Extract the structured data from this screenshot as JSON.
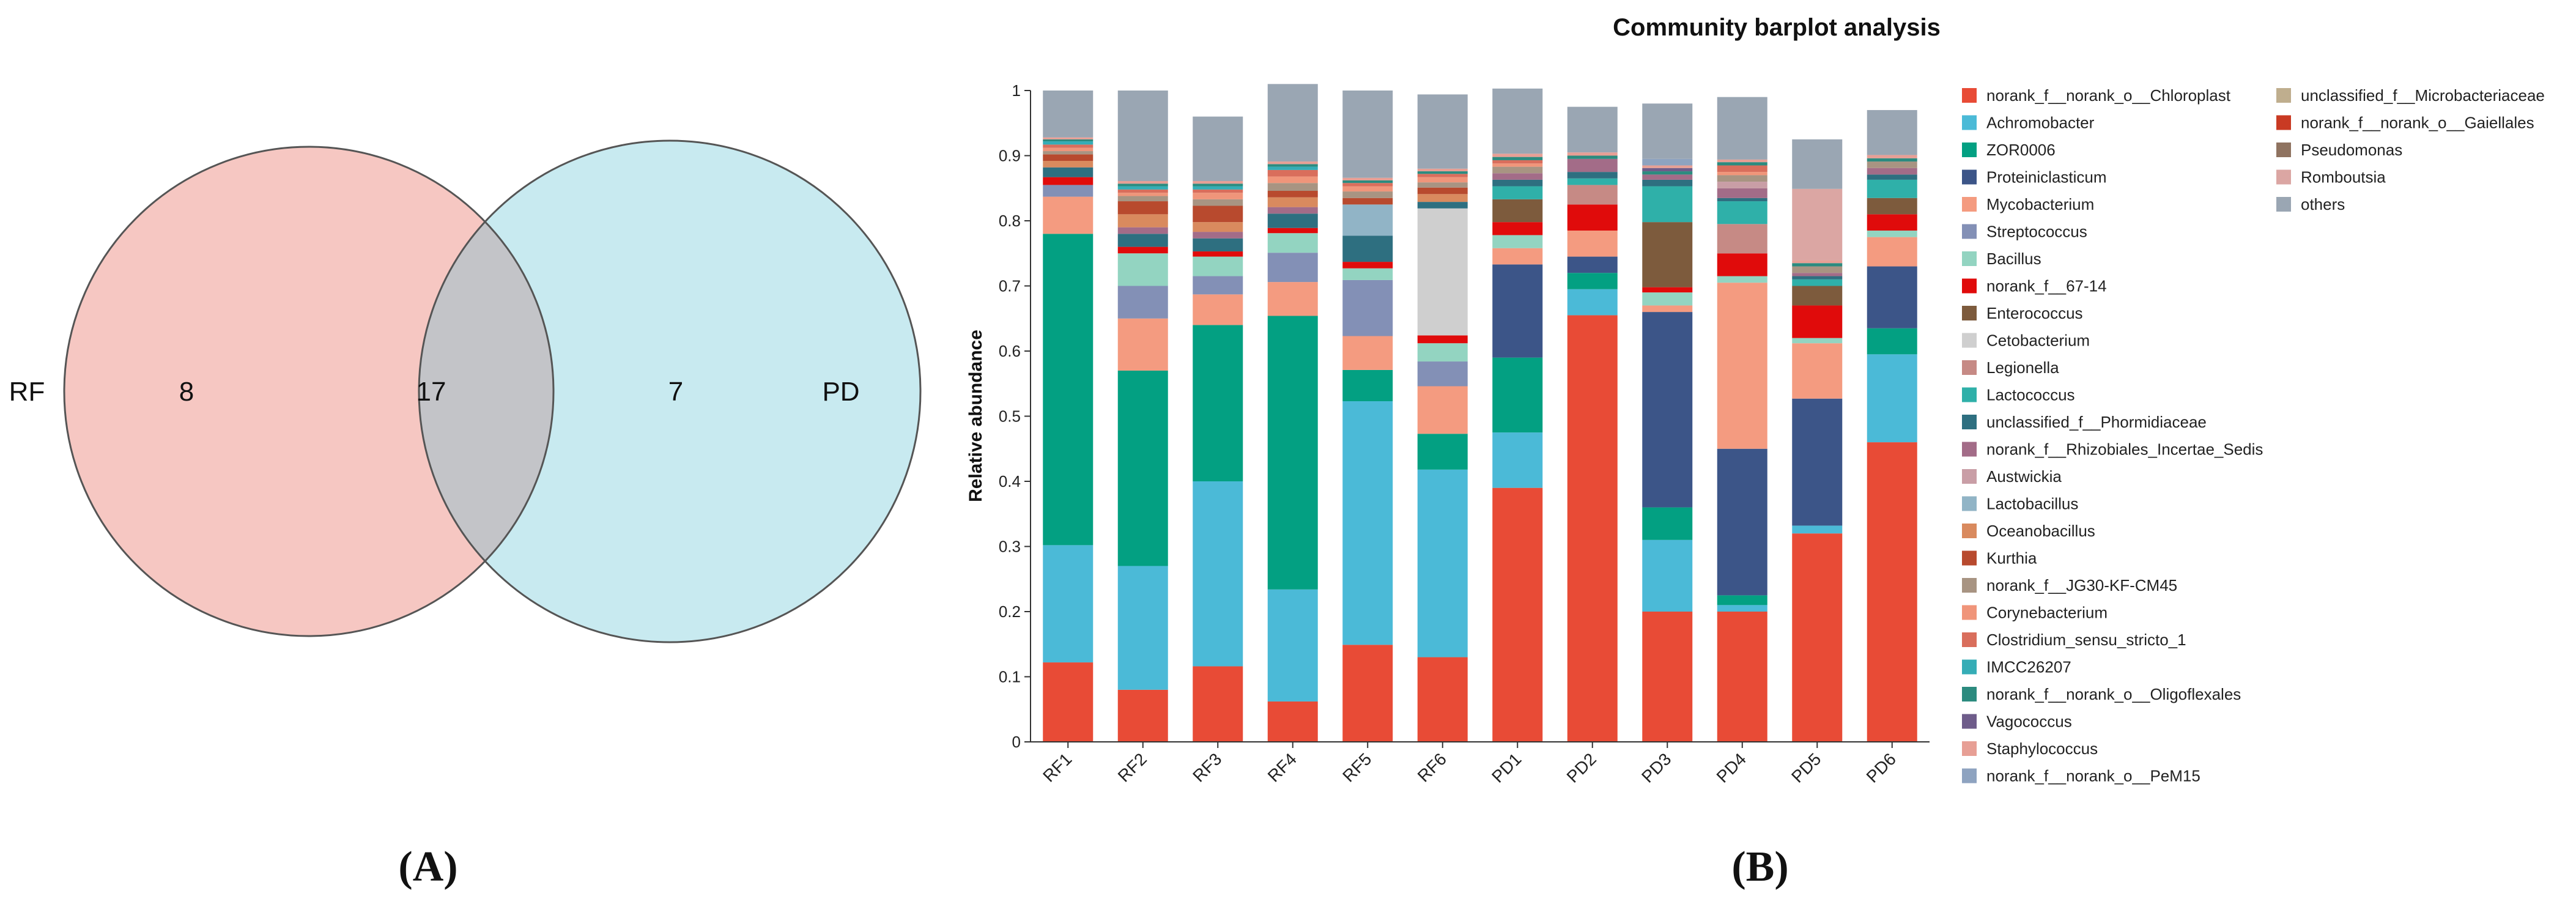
{
  "panel_a": {
    "caption": "(A)",
    "venn": {
      "left_label": "RF",
      "right_label": "PD",
      "left_only": "8",
      "overlap": "17",
      "right_only": "7",
      "colors": {
        "left": "#f6c7c2",
        "right": "#c8eaf0",
        "overlap": "#c3c4c8"
      }
    }
  },
  "panel_b": {
    "caption": "(B)",
    "chart_data": {
      "type": "bar",
      "stacked": true,
      "title": "Community barplot analysis",
      "xlabel": "",
      "ylabel": "Relative abundance",
      "ylim": [
        0,
        1
      ],
      "yticks": [
        "0",
        "0.1",
        "0.2",
        "0.3",
        "0.4",
        "0.5",
        "0.6",
        "0.7",
        "0.8",
        "0.9",
        "1"
      ],
      "categories": [
        "RF1",
        "RF2",
        "RF3",
        "RF4",
        "RF5",
        "RF6",
        "PD1",
        "PD2",
        "PD3",
        "PD4",
        "PD5",
        "PD6"
      ],
      "series": [
        {
          "name": "norank_f__norank_o__Chloroplast",
          "color": "#e84b36",
          "values": [
            0.122,
            0.08,
            0.116,
            0.062,
            0.149,
            0.13,
            0.39,
            0.655,
            0.2,
            0.2,
            0.32,
            0.46
          ]
        },
        {
          "name": "Achromobacter",
          "color": "#4bbad7",
          "values": [
            0.18,
            0.19,
            0.284,
            0.172,
            0.374,
            0.288,
            0.085,
            0.04,
            0.11,
            0.01,
            0.012,
            0.135
          ]
        },
        {
          "name": "ZOR0006",
          "color": "#03a082",
          "values": [
            0.478,
            0.3,
            0.24,
            0.42,
            0.048,
            0.055,
            0.115,
            0.025,
            0.05,
            0.015,
            0.0,
            0.04
          ]
        },
        {
          "name": "Proteiniclasticum",
          "color": "#3c5588",
          "values": [
            0.0,
            0.0,
            0.0,
            0.0,
            0.0,
            0.0,
            0.143,
            0.025,
            0.3,
            0.225,
            0.195,
            0.095
          ]
        },
        {
          "name": "Mycobacterium",
          "color": "#f49b80",
          "values": [
            0.057,
            0.08,
            0.047,
            0.052,
            0.052,
            0.073,
            0.025,
            0.04,
            0.01,
            0.255,
            0.085,
            0.045
          ]
        },
        {
          "name": "Streptococcus",
          "color": "#8390b6",
          "values": [
            0.018,
            0.05,
            0.028,
            0.045,
            0.086,
            0.038,
            0.0,
            0.0,
            0.0,
            0.0,
            0.0,
            0.0
          ]
        },
        {
          "name": "Bacillus",
          "color": "#93d4c1",
          "values": [
            0.0,
            0.05,
            0.03,
            0.03,
            0.018,
            0.028,
            0.02,
            0.0,
            0.02,
            0.01,
            0.008,
            0.01
          ]
        },
        {
          "name": "norank_f__67-14",
          "color": "#e00b0b",
          "values": [
            0.012,
            0.01,
            0.008,
            0.008,
            0.01,
            0.012,
            0.02,
            0.04,
            0.008,
            0.035,
            0.05,
            0.025
          ]
        },
        {
          "name": "Enterococcus",
          "color": "#7d5b3d",
          "values": [
            0.0,
            0.0,
            0.0,
            0.0,
            0.0,
            0.0,
            0.035,
            0.0,
            0.1,
            0.0,
            0.03,
            0.025
          ]
        },
        {
          "name": "Cetobacterium",
          "color": "#cfcfcf",
          "values": [
            0.0,
            0.0,
            0.0,
            0.0,
            0.0,
            0.195,
            0.0,
            0.0,
            0.0,
            0.0,
            0.0,
            0.0
          ]
        },
        {
          "name": "Legionella",
          "color": "#c68a85",
          "values": [
            0.0,
            0.0,
            0.0,
            0.0,
            0.0,
            0.0,
            0.0,
            0.03,
            0.0,
            0.045,
            0.0,
            0.0
          ]
        },
        {
          "name": "Lactococcus",
          "color": "#2fb0a9",
          "values": [
            0.0,
            0.0,
            0.0,
            0.0,
            0.0,
            0.0,
            0.02,
            0.01,
            0.055,
            0.035,
            0.01,
            0.028
          ]
        },
        {
          "name": "unclassified_f__Phormidiaceae",
          "color": "#2e6f80",
          "values": [
            0.015,
            0.02,
            0.02,
            0.022,
            0.04,
            0.01,
            0.01,
            0.01,
            0.01,
            0.005,
            0.005,
            0.008
          ]
        },
        {
          "name": "norank_f__Rhizobiales_Incertae_Sedis",
          "color": "#a36c88",
          "values": [
            0.0,
            0.01,
            0.01,
            0.01,
            0.0,
            0.0,
            0.01,
            0.02,
            0.008,
            0.015,
            0.005,
            0.01
          ]
        },
        {
          "name": "Austwickia",
          "color": "#c99ea6",
          "values": [
            0.0,
            0.0,
            0.0,
            0.0,
            0.0,
            0.0,
            0.0,
            0.0,
            0.0,
            0.01,
            0.0,
            0.0
          ]
        },
        {
          "name": "Lactobacillus",
          "color": "#91b4c6",
          "values": [
            0.0,
            0.0,
            0.0,
            0.0,
            0.048,
            0.0,
            0.0,
            0.0,
            0.0,
            0.0,
            0.0,
            0.0
          ]
        },
        {
          "name": "Oceanobacillus",
          "color": "#d98a5e",
          "values": [
            0.01,
            0.02,
            0.015,
            0.015,
            0.0,
            0.012,
            0.0,
            0.0,
            0.0,
            0.0,
            0.0,
            0.0
          ]
        },
        {
          "name": "Kurthia",
          "color": "#b84a2e",
          "values": [
            0.01,
            0.02,
            0.025,
            0.01,
            0.01,
            0.01,
            0.0,
            0.0,
            0.0,
            0.0,
            0.0,
            0.0
          ]
        },
        {
          "name": "norank_f__JG30-KF-CM45",
          "color": "#a89482",
          "values": [
            0.005,
            0.008,
            0.01,
            0.012,
            0.01,
            0.008,
            0.01,
            0.0,
            0.0,
            0.01,
            0.01,
            0.01
          ]
        },
        {
          "name": "Corynebacterium",
          "color": "#f0957a",
          "values": [
            0.005,
            0.005,
            0.01,
            0.01,
            0.008,
            0.008,
            0.005,
            0.0,
            0.0,
            0.005,
            0.0,
            0.0
          ]
        },
        {
          "name": "Clostridium_sensu_stricto_1",
          "color": "#d96e5c",
          "values": [
            0.005,
            0.005,
            0.005,
            0.01,
            0.005,
            0.005,
            0.005,
            0.0,
            0.0,
            0.01,
            0.0,
            0.0
          ]
        },
        {
          "name": "IMCC26207",
          "color": "#35adb6",
          "values": [
            0.005,
            0.005,
            0.005,
            0.005,
            0.0,
            0.0,
            0.0,
            0.0,
            0.0,
            0.0,
            0.0,
            0.0
          ]
        },
        {
          "name": "norank_f__norank_o__Oligoflexales",
          "color": "#2c8b7f",
          "values": [
            0.003,
            0.004,
            0.004,
            0.004,
            0.004,
            0.004,
            0.005,
            0.005,
            0.005,
            0.005,
            0.005,
            0.005
          ]
        },
        {
          "name": "Vagococcus",
          "color": "#6e5c8a",
          "values": [
            0.0,
            0.0,
            0.0,
            0.0,
            0.0,
            0.0,
            0.0,
            0.0,
            0.005,
            0.0,
            0.0,
            0.0
          ]
        },
        {
          "name": "Staphylococcus",
          "color": "#e79f95",
          "values": [
            0.003,
            0.004,
            0.004,
            0.004,
            0.004,
            0.004,
            0.005,
            0.005,
            0.004,
            0.004,
            0.004,
            0.005
          ]
        },
        {
          "name": "norank_f__norank_o__PeM15",
          "color": "#8ea3c0",
          "values": [
            0.0,
            0.0,
            0.0,
            0.0,
            0.0,
            0.0,
            0.0,
            0.0,
            0.01,
            0.0,
            0.0,
            0.0
          ]
        },
        {
          "name": "unclassified_f__Microbacteriaceae",
          "color": "#bfae8e",
          "values": [
            0.0,
            0.0,
            0.0,
            0.0,
            0.0,
            0.0,
            0.0,
            0.0,
            0.0,
            0.0,
            0.0,
            0.0
          ]
        },
        {
          "name": "norank_f__norank_o__Gaiellales",
          "color": "#c93a23",
          "values": [
            0.0,
            0.0,
            0.0,
            0.0,
            0.0,
            0.0,
            0.0,
            0.0,
            0.0,
            0.0,
            0.0,
            0.0
          ]
        },
        {
          "name": "Pseudomonas",
          "color": "#8f7360",
          "values": [
            0.0,
            0.0,
            0.0,
            0.0,
            0.0,
            0.0,
            0.0,
            0.0,
            0.0,
            0.0,
            0.0,
            0.0
          ]
        },
        {
          "name": "Romboutsia",
          "color": "#dba6a3",
          "values": [
            0.0,
            0.0,
            0.0,
            0.0,
            0.0,
            0.0,
            0.0,
            0.0,
            0.0,
            0.0,
            0.11,
            0.0
          ]
        },
        {
          "name": "others",
          "color": "#9aa6b3",
          "values": [
            0.072,
            0.139,
            0.099,
            0.119,
            0.134,
            0.114,
            0.1,
            0.07,
            0.085,
            0.096,
            0.076,
            0.069
          ]
        }
      ]
    }
  }
}
